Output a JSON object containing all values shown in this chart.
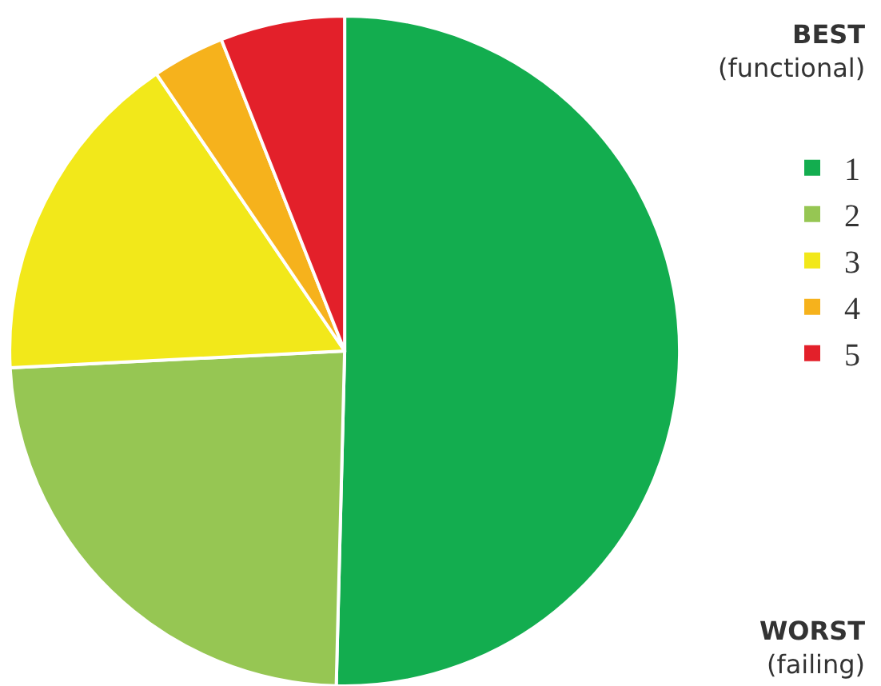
{
  "chart_data": {
    "type": "pie",
    "categories": [
      "1",
      "2",
      "3",
      "4",
      "5"
    ],
    "values": [
      50.4,
      23.8,
      16.3,
      3.5,
      6.0
    ],
    "colors": [
      "#13ad4f",
      "#96c653",
      "#f2e81a",
      "#f6b21c",
      "#e3202a"
    ],
    "legend": "right",
    "legend_title": "BEST (functional)",
    "annotations": [
      "WORST (failing)"
    ]
  }
}
